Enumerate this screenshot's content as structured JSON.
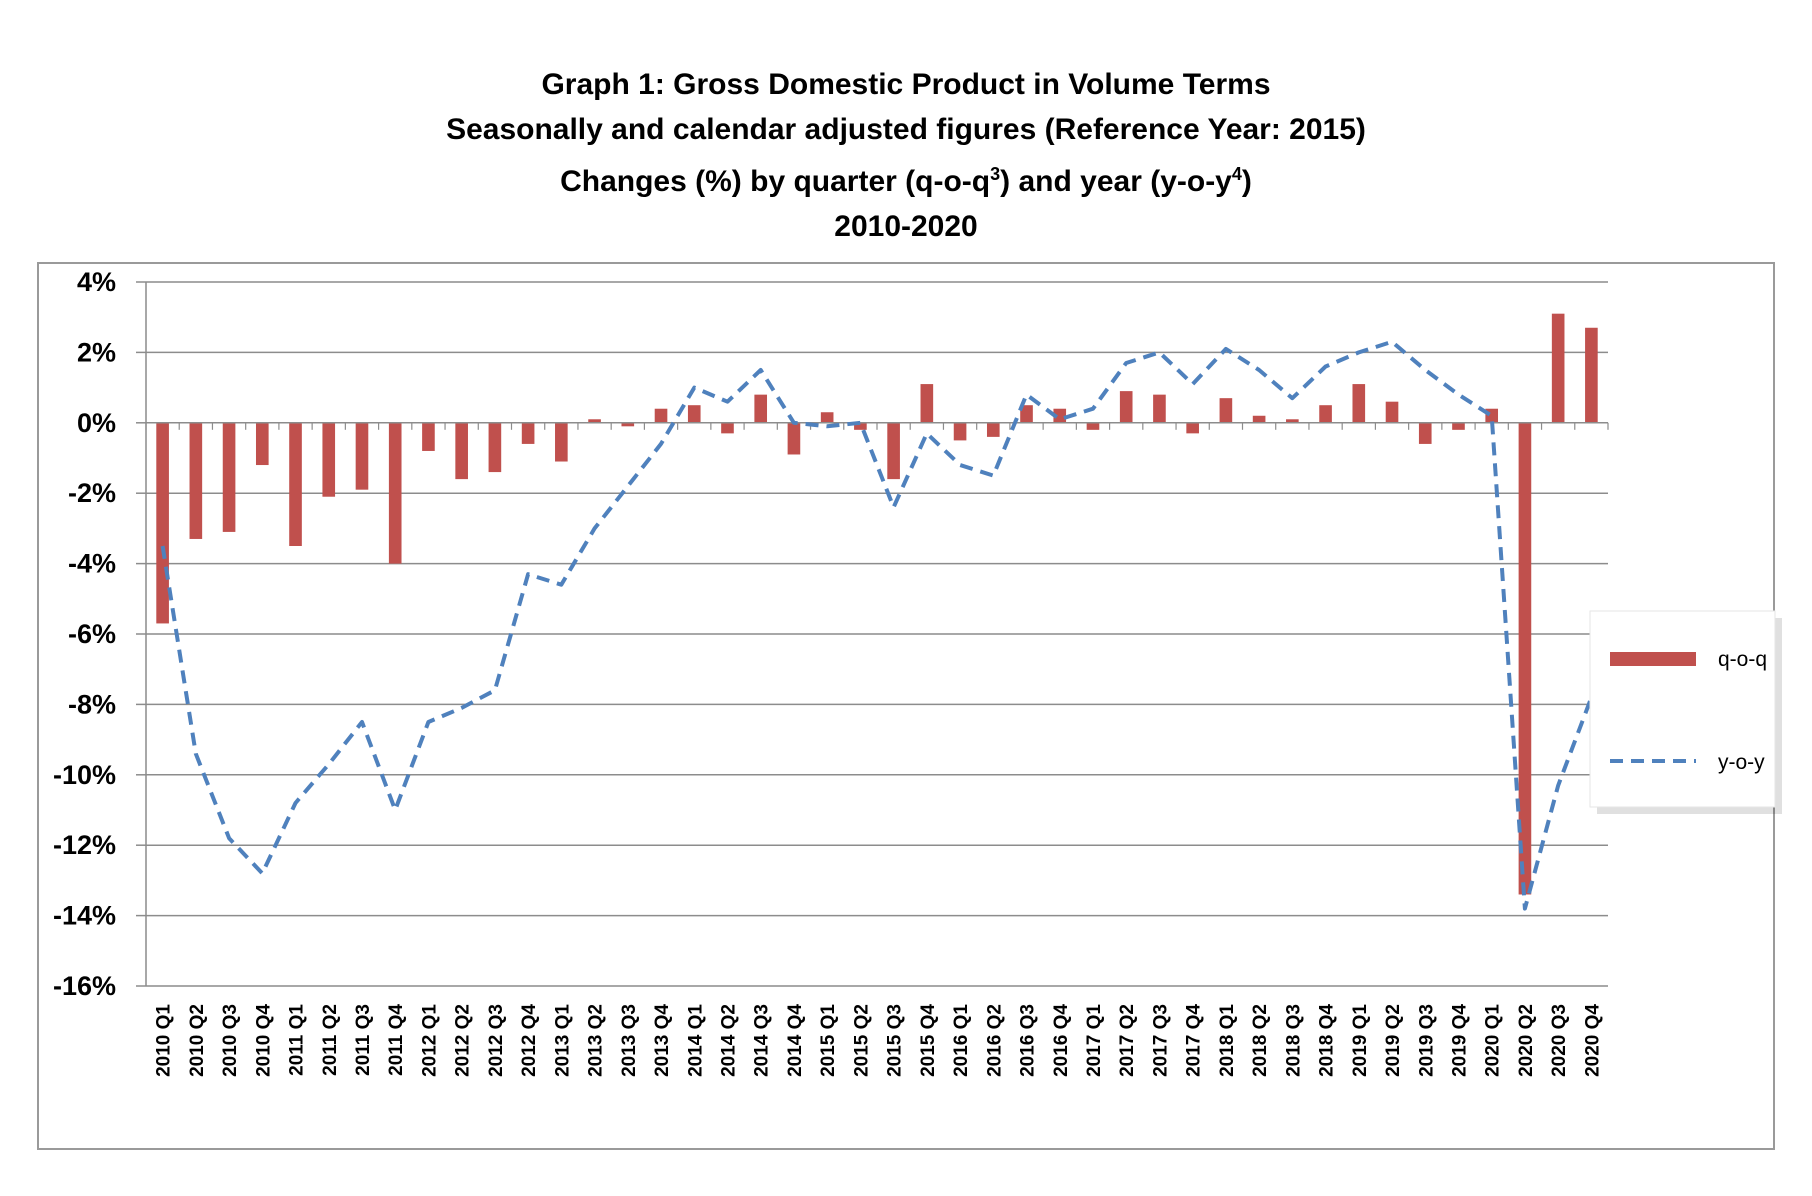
{
  "title": {
    "line1": "Graph 1: Gross Domestic Product in Volume Terms",
    "line2": "Seasonally and calendar adjusted figures (Reference Year: 2015)",
    "line3_prefix": "Changes (%) by quarter (q-o-q",
    "line3_sup1": "3",
    "line3_middle": ") and year (y-o-y",
    "line3_sup2": "4",
    "line3_suffix": ")",
    "line4": "2010-2020"
  },
  "chart_data": {
    "type": "bar",
    "categories": [
      "2010 Q1",
      "2010 Q2",
      "2010 Q3",
      "2010 Q4",
      "2011 Q1",
      "2011 Q2",
      "2011 Q3",
      "2011 Q4",
      "2012 Q1",
      "2012 Q2",
      "2012 Q3",
      "2012 Q4",
      "2013 Q1",
      "2013 Q2",
      "2013 Q3",
      "2013 Q4",
      "2014 Q1",
      "2014 Q2",
      "2014 Q3",
      "2014 Q4",
      "2015 Q1",
      "2015 Q2",
      "2015 Q3",
      "2015 Q4",
      "2016 Q1",
      "2016 Q2",
      "2016 Q3",
      "2016 Q4",
      "2017 Q1",
      "2017 Q2",
      "2017 Q3",
      "2017 Q4",
      "2018 Q1",
      "2018 Q2",
      "2018 Q3",
      "2018 Q4",
      "2019 Q1",
      "2019 Q2",
      "2019 Q3",
      "2019 Q4",
      "2020 Q1",
      "2020 Q2",
      "2020 Q3",
      "2020 Q4"
    ],
    "series": [
      {
        "name": "q-o-q",
        "kind": "bar",
        "color": "#c0504d",
        "values": [
          -5.7,
          -3.3,
          -3.1,
          -1.2,
          -3.5,
          -2.1,
          -1.9,
          -4.0,
          -0.8,
          -1.6,
          -1.4,
          -0.6,
          -1.1,
          0.1,
          -0.1,
          0.4,
          0.5,
          -0.3,
          0.8,
          -0.9,
          0.3,
          -0.2,
          -1.6,
          1.1,
          -0.5,
          -0.4,
          0.5,
          0.4,
          -0.2,
          0.9,
          0.8,
          -0.3,
          0.7,
          0.2,
          0.1,
          0.5,
          1.1,
          0.6,
          -0.6,
          -0.2,
          0.4,
          -13.4,
          3.1,
          2.7
        ]
      },
      {
        "name": "y-o-y",
        "kind": "line",
        "style": "dashed",
        "color": "#4f81bd",
        "values": [
          -3.5,
          -9.4,
          -11.8,
          -12.8,
          -10.8,
          -9.7,
          -8.5,
          -11.0,
          -8.5,
          -8.1,
          -7.6,
          -4.3,
          -4.6,
          -3.0,
          -1.8,
          -0.6,
          1.0,
          0.6,
          1.5,
          0.0,
          -0.1,
          0.0,
          -2.4,
          -0.3,
          -1.2,
          -1.5,
          0.8,
          0.1,
          0.4,
          1.7,
          2.0,
          1.1,
          2.1,
          1.5,
          0.7,
          1.6,
          2.0,
          2.3,
          1.5,
          0.8,
          0.2,
          -13.8,
          -10.3,
          -7.8
        ]
      }
    ],
    "yaxis": {
      "min": -16,
      "max": 4,
      "step": 2,
      "tick_labels": [
        "4%",
        "2%",
        "0%",
        "-2%",
        "-4%",
        "-6%",
        "-8%",
        "-10%",
        "-12%",
        "-14%",
        "-16%"
      ]
    },
    "grid": true,
    "legend_position": "right",
    "xlabel": "",
    "ylabel": ""
  }
}
